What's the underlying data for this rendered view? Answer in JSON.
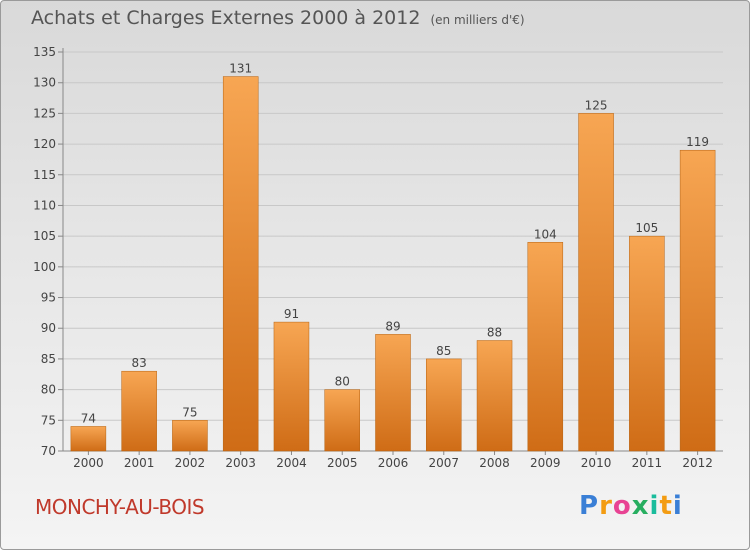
{
  "header": {
    "title": "Achats et Charges Externes 2000 à 2012",
    "subtitle": "(en milliers d'€)"
  },
  "footer": {
    "commune": "MONCHY-AU-BOIS",
    "logo": "Proxiti"
  },
  "colors": {
    "bar_light": "#f7a653",
    "bar_dark": "#cf6c16",
    "commune_text": "#c0392b"
  },
  "chart_data": {
    "type": "bar",
    "title": "Achats et Charges Externes 2000 à 2012",
    "subtitle": "(en milliers d'€)",
    "categories": [
      "2000",
      "2001",
      "2002",
      "2003",
      "2004",
      "2005",
      "2006",
      "2007",
      "2008",
      "2009",
      "2010",
      "2011",
      "2012"
    ],
    "values": [
      74,
      83,
      75,
      131,
      91,
      80,
      89,
      85,
      88,
      104,
      125,
      105,
      119
    ],
    "ylim": [
      70,
      135
    ],
    "yticks": [
      70,
      75,
      80,
      85,
      90,
      95,
      100,
      105,
      110,
      115,
      120,
      125,
      130,
      135
    ],
    "grid": true,
    "legend": "none"
  }
}
